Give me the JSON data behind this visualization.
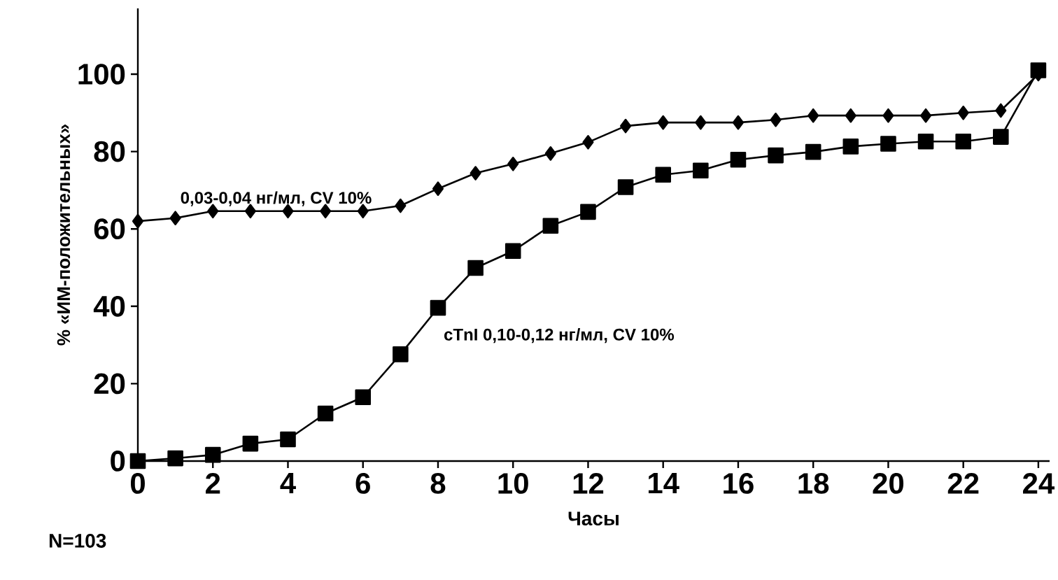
{
  "chart_data": {
    "type": "line",
    "xlabel": "Часы",
    "ylabel": "% «ИМ-положительных»",
    "x": [
      0,
      1,
      2,
      3,
      4,
      5,
      6,
      7,
      8,
      9,
      10,
      11,
      12,
      13,
      14,
      15,
      16,
      17,
      18,
      19,
      20,
      21,
      22,
      23,
      24
    ],
    "series": [
      {
        "name": "0,03-0,04 нг/мл, CV 10%",
        "color": "#000000",
        "marker": "diamond",
        "values": [
          62,
          62.8,
          64.6,
          64.6,
          64.6,
          64.6,
          64.6,
          66,
          70.4,
          74.4,
          76.8,
          79.5,
          82.4,
          86.6,
          87.5,
          87.5,
          87.5,
          88.2,
          89.3,
          89.3,
          89.3,
          89.3,
          90,
          90.6,
          100
        ]
      },
      {
        "name": "cTnI  0,10-0,12 нг/мл, CV 10%",
        "color": "#000000",
        "marker": "square",
        "values": [
          0,
          0.7,
          1.6,
          4.5,
          5.6,
          12.3,
          16.5,
          27.6,
          39.6,
          49.9,
          54.3,
          60.8,
          64.4,
          70.8,
          74,
          75.1,
          77.9,
          79,
          79.9,
          81.3,
          82,
          82.6,
          82.6,
          83.8,
          101
        ]
      }
    ],
    "xlim": [
      0,
      24.3
    ],
    "ylim": [
      0,
      117
    ],
    "xticks": [
      0,
      2,
      4,
      6,
      8,
      10,
      12,
      14,
      16,
      18,
      20,
      22,
      24
    ],
    "yticks": [
      0,
      20,
      40,
      60,
      80,
      100
    ],
    "line_style": "solid",
    "grid": false,
    "annotations": [
      "N=103"
    ]
  }
}
